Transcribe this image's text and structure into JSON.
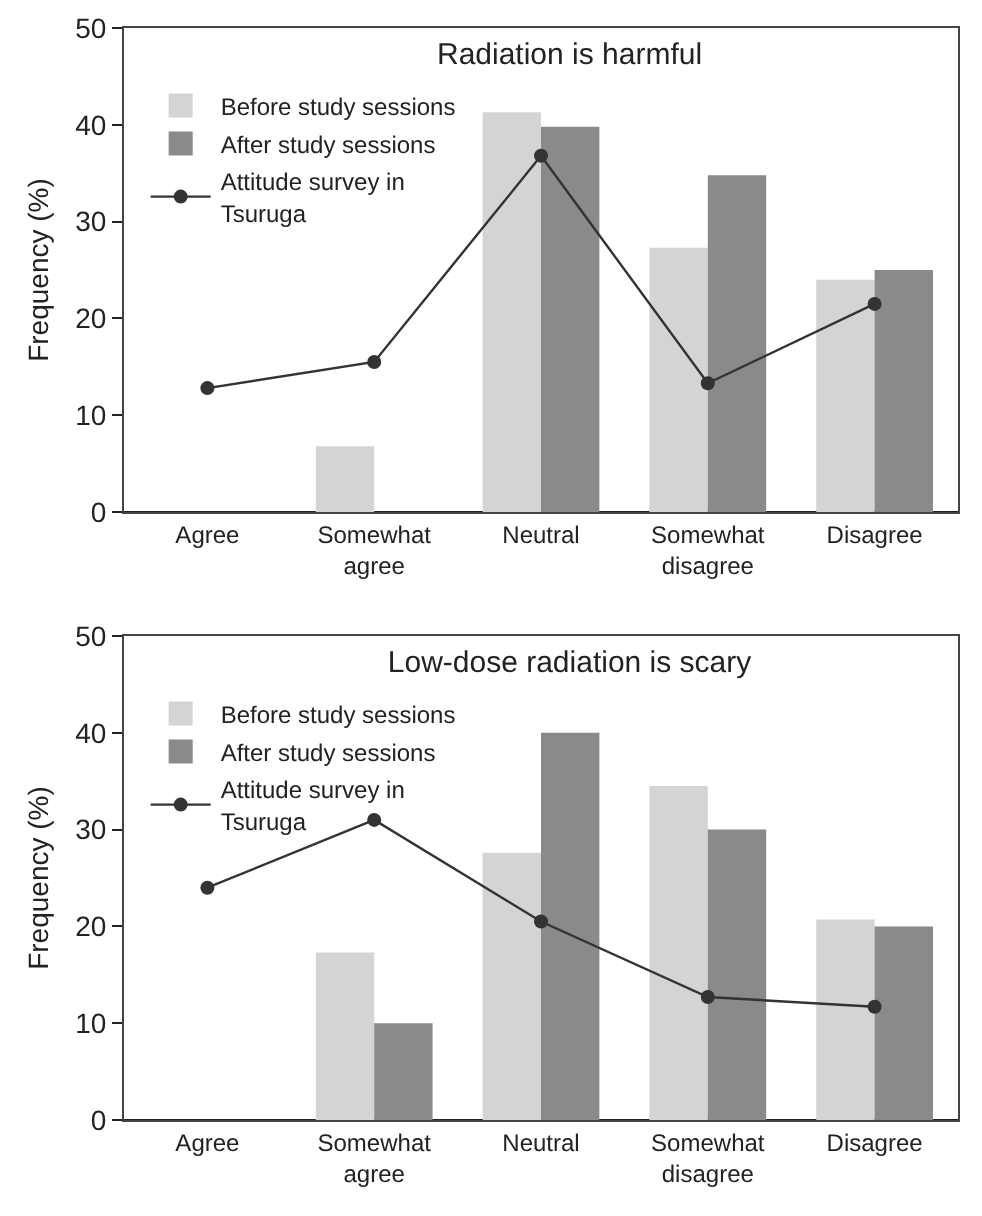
{
  "chart_data": [
    {
      "type": "bar",
      "title": "Radiation is harmful",
      "ylabel": "Frequency (%)",
      "categories": [
        "Agree",
        "Somewhat agree",
        "Neutral",
        "Somewhat disagree",
        "Disagree"
      ],
      "series": [
        {
          "name": "Before study sessions",
          "color": "#d4d4d4",
          "values": [
            0,
            6.8,
            41.3,
            27.3,
            24
          ]
        },
        {
          "name": "After study sessions",
          "color": "#8a8a8a",
          "values": [
            0,
            0,
            39.8,
            34.8,
            25
          ]
        },
        {
          "name": "Attitude survey in Tsuruga",
          "type": "line",
          "color": "#333333",
          "values": [
            12.8,
            15.5,
            36.8,
            13.3,
            21.5
          ]
        }
      ],
      "ylim": [
        0,
        50
      ],
      "yticks": [
        0,
        10,
        20,
        30,
        40,
        50
      ],
      "grid": false,
      "legend": "top left",
      "marker": "circle"
    },
    {
      "type": "bar",
      "title": "Low-dose radiation is scary",
      "ylabel": "Frequency (%)",
      "categories": [
        "Agree",
        "Somewhat agree",
        "Neutral",
        "Somewhat disagree",
        "Disagree"
      ],
      "series": [
        {
          "name": "Before study sessions",
          "color": "#d4d4d4",
          "values": [
            0,
            17.3,
            27.6,
            34.5,
            20.7
          ]
        },
        {
          "name": "After study sessions",
          "color": "#8a8a8a",
          "values": [
            0,
            10,
            40,
            30,
            20
          ]
        },
        {
          "name": "Attitude survey in Tsuruga",
          "type": "line",
          "color": "#333333",
          "values": [
            24,
            31,
            20.5,
            12.7,
            11.7
          ]
        }
      ],
      "ylim": [
        0,
        50
      ],
      "yticks": [
        0,
        10,
        20,
        30,
        40,
        50
      ],
      "grid": false,
      "legend": "top left",
      "marker": "circle"
    }
  ]
}
